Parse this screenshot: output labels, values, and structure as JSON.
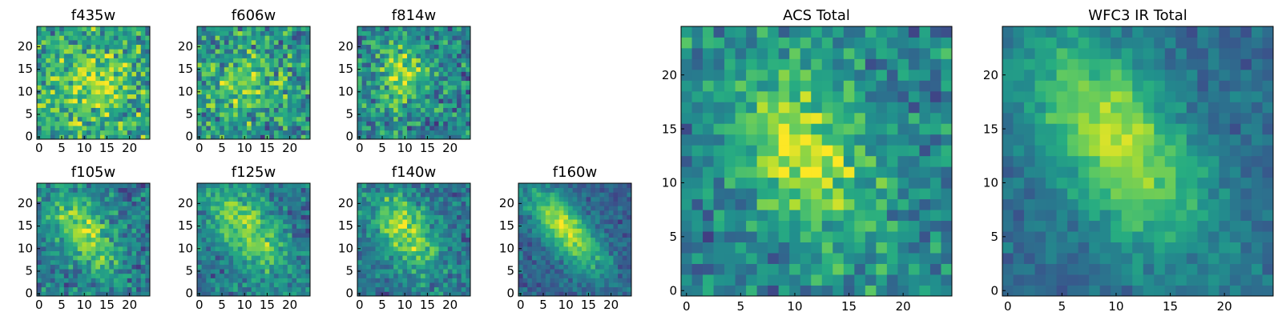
{
  "chart_data": [
    {
      "type": "heatmap",
      "title": "f435w",
      "grid_size": 25,
      "colormap": "viridis",
      "xticks": [
        "0",
        "5",
        "10",
        "15",
        "20"
      ],
      "yticks": [
        "0",
        "5",
        "10",
        "15",
        "20"
      ],
      "center": [
        12,
        12
      ],
      "sigma": [
        7,
        7
      ],
      "angle": 0,
      "signal": 0.28,
      "noise": 0.55,
      "base": 0.55
    },
    {
      "type": "heatmap",
      "title": "f606w",
      "grid_size": 25,
      "colormap": "viridis",
      "xticks": [
        "0",
        "5",
        "10",
        "15",
        "20"
      ],
      "yticks": [
        "0",
        "5",
        "10",
        "15",
        "20"
      ],
      "center": [
        11,
        12
      ],
      "sigma": [
        5,
        5
      ],
      "angle": 0,
      "signal": 0.3,
      "noise": 0.55,
      "base": 0.5
    },
    {
      "type": "heatmap",
      "title": "f814w",
      "grid_size": 25,
      "colormap": "viridis",
      "xticks": [
        "0",
        "5",
        "10",
        "15",
        "20"
      ],
      "yticks": [
        "0",
        "5",
        "10",
        "15",
        "20"
      ],
      "center": [
        9,
        14
      ],
      "sigma": [
        4,
        5
      ],
      "angle": 0,
      "signal": 0.4,
      "noise": 0.5,
      "base": 0.45
    },
    {
      "type": "heatmap",
      "title": "f105w",
      "grid_size": 25,
      "colormap": "viridis",
      "xticks": [
        "0",
        "5",
        "10",
        "15",
        "20"
      ],
      "yticks": [
        "0",
        "5",
        "10",
        "15",
        "20"
      ],
      "center": [
        10,
        14
      ],
      "sigma": [
        4,
        7
      ],
      "angle": -0.6,
      "signal": 0.45,
      "noise": 0.4,
      "base": 0.4
    },
    {
      "type": "heatmap",
      "title": "f125w",
      "grid_size": 25,
      "colormap": "viridis",
      "xticks": [
        "0",
        "5",
        "10",
        "15",
        "20"
      ],
      "yticks": [
        "0",
        "5",
        "10",
        "15",
        "20"
      ],
      "center": [
        11,
        14
      ],
      "sigma": [
        4,
        8
      ],
      "angle": -0.6,
      "signal": 0.45,
      "noise": 0.35,
      "base": 0.4
    },
    {
      "type": "heatmap",
      "title": "f140w",
      "grid_size": 25,
      "colormap": "viridis",
      "xticks": [
        "0",
        "5",
        "10",
        "15",
        "20"
      ],
      "yticks": [
        "0",
        "5",
        "10",
        "15",
        "20"
      ],
      "center": [
        10,
        14
      ],
      "sigma": [
        4,
        7
      ],
      "angle": -0.6,
      "signal": 0.5,
      "noise": 0.35,
      "base": 0.38
    },
    {
      "type": "heatmap",
      "title": "f160w",
      "grid_size": 25,
      "colormap": "viridis",
      "xticks": [
        "0",
        "5",
        "10",
        "15",
        "20"
      ],
      "yticks": [
        "0",
        "5",
        "10",
        "15",
        "20"
      ],
      "center": [
        10,
        14
      ],
      "sigma": [
        3,
        8
      ],
      "angle": -0.7,
      "signal": 0.6,
      "noise": 0.25,
      "base": 0.32
    },
    {
      "type": "heatmap",
      "title": "ACS Total",
      "grid_size": 25,
      "colormap": "viridis",
      "xticks": [
        "0",
        "5",
        "10",
        "15",
        "20"
      ],
      "yticks": [
        "0",
        "5",
        "10",
        "15",
        "20"
      ],
      "center": [
        11,
        13
      ],
      "sigma": [
        4,
        6
      ],
      "angle": -0.5,
      "signal": 0.45,
      "noise": 0.4,
      "base": 0.45
    },
    {
      "type": "heatmap",
      "title": "WFC3 IR Total",
      "grid_size": 25,
      "colormap": "viridis",
      "xticks": [
        "0",
        "5",
        "10",
        "15",
        "20"
      ],
      "yticks": [
        "0",
        "5",
        "10",
        "15",
        "20"
      ],
      "center": [
        10,
        14
      ],
      "sigma": [
        4,
        8
      ],
      "angle": -0.6,
      "signal": 0.55,
      "noise": 0.2,
      "base": 0.35
    }
  ]
}
